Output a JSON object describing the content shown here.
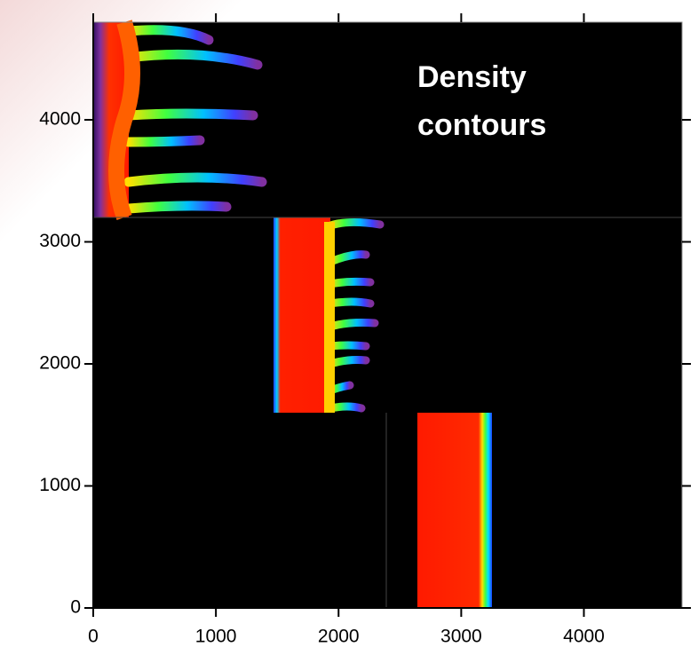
{
  "chart_data": {
    "type": "image",
    "annotation": "Density contours",
    "xlim": [
      0,
      4800
    ],
    "ylim": [
      0,
      4800
    ],
    "xticks": [
      0,
      1000,
      2000,
      3000,
      4000
    ],
    "yticks": [
      0,
      1000,
      2000,
      3000,
      4000
    ]
  }
}
